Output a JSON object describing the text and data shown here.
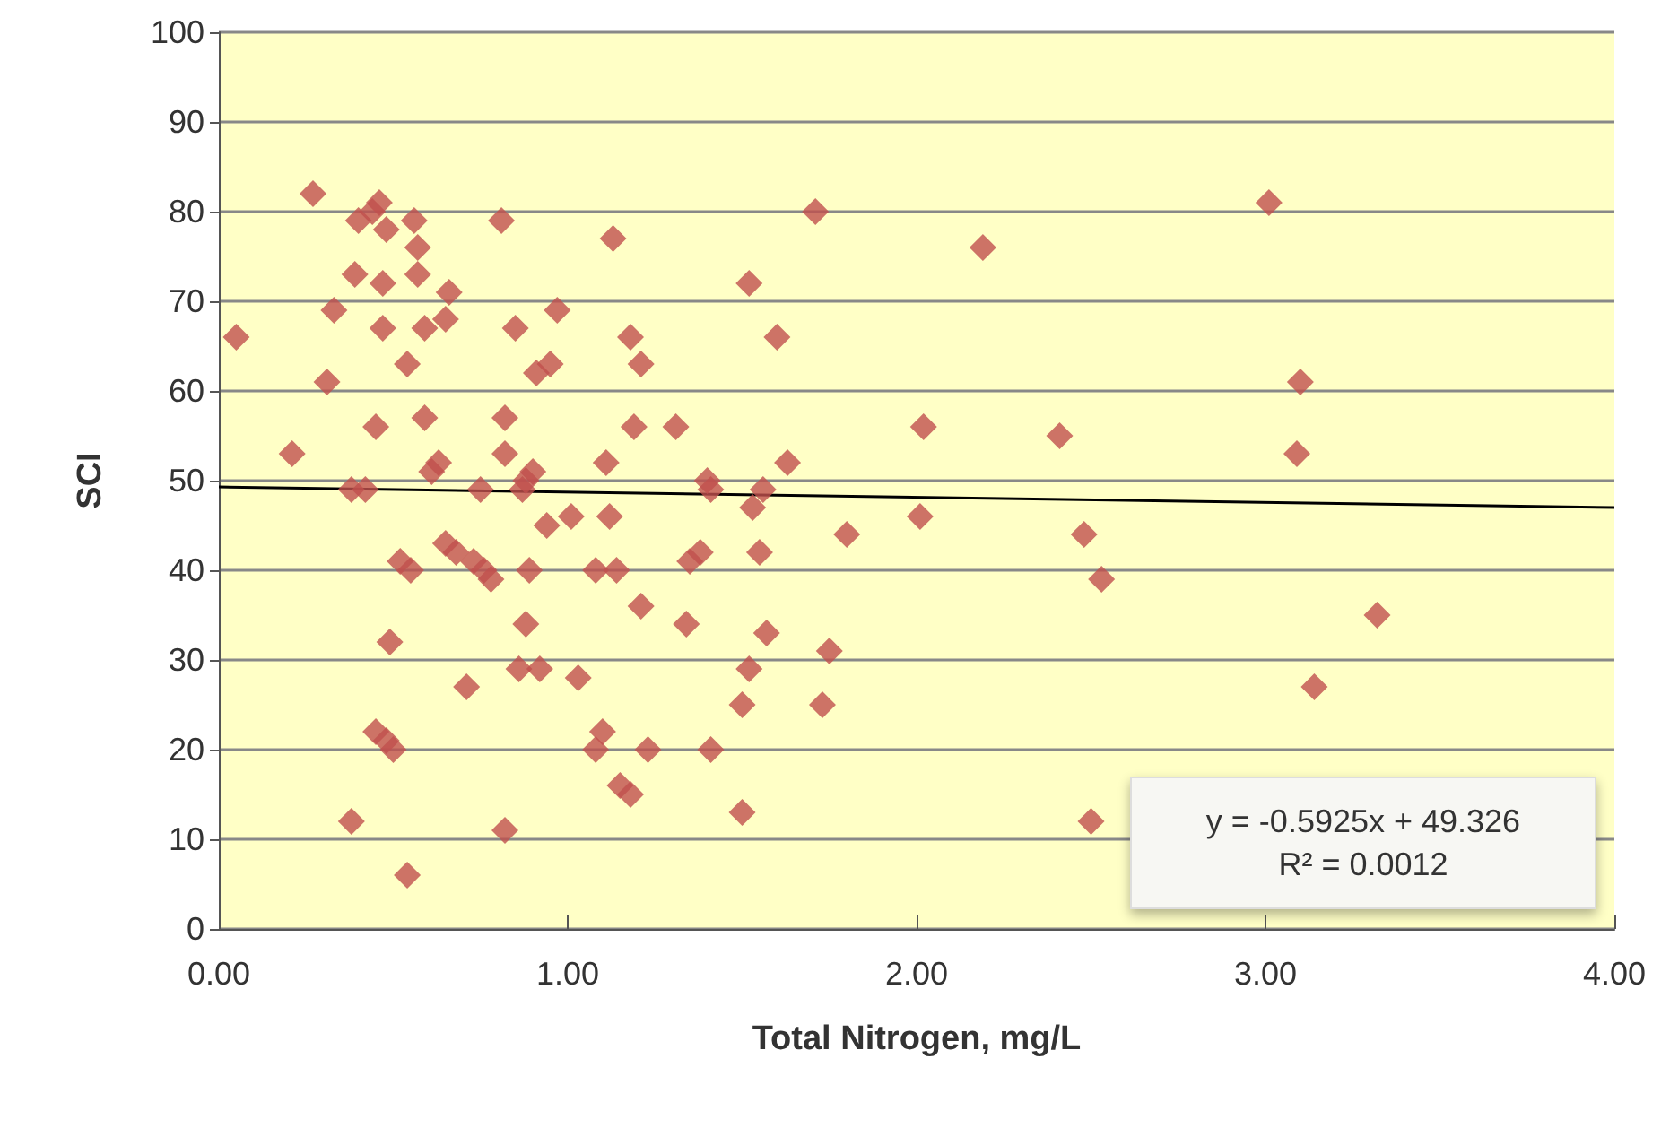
{
  "chart_data": {
    "type": "scatter",
    "xlabel": "Total Nitrogen, mg/L",
    "ylabel": "SCI",
    "xlim": [
      0,
      4
    ],
    "xticks": [
      {
        "value": 0,
        "label": "0.00"
      },
      {
        "value": 1,
        "label": "1.00"
      },
      {
        "value": 2,
        "label": "2.00"
      },
      {
        "value": 3,
        "label": "3.00"
      },
      {
        "value": 4,
        "label": "4.00"
      }
    ],
    "ylim": [
      0,
      100
    ],
    "yticks": [
      0,
      10,
      20,
      30,
      40,
      50,
      60,
      70,
      80,
      90,
      100
    ],
    "grid": "y",
    "annotations": [
      "y = -0.5925x + 49.326",
      "R² = 0.0012"
    ],
    "series": [
      {
        "marker": "diamond",
        "color": "#c0504d",
        "x": [
          0.05,
          0.21,
          0.27,
          0.31,
          0.33,
          0.38,
          0.38,
          0.39,
          0.4,
          0.42,
          0.44,
          0.45,
          0.45,
          0.46,
          0.47,
          0.47,
          0.48,
          0.48,
          0.49,
          0.5,
          0.52,
          0.54,
          0.54,
          0.55,
          0.56,
          0.57,
          0.57,
          0.59,
          0.59,
          0.61,
          0.63,
          0.65,
          0.65,
          0.66,
          0.68,
          0.71,
          0.73,
          0.75,
          0.76,
          0.78,
          0.81,
          0.82,
          0.82,
          0.82,
          0.85,
          0.86,
          0.87,
          0.88,
          0.88,
          0.89,
          0.9,
          0.91,
          0.92,
          0.94,
          0.95,
          0.97,
          1.01,
          1.03,
          1.08,
          1.08,
          1.1,
          1.11,
          1.12,
          1.13,
          1.14,
          1.15,
          1.18,
          1.18,
          1.19,
          1.21,
          1.21,
          1.23,
          1.31,
          1.34,
          1.35,
          1.38,
          1.4,
          1.41,
          1.41,
          1.5,
          1.5,
          1.52,
          1.52,
          1.53,
          1.55,
          1.56,
          1.57,
          1.6,
          1.63,
          1.71,
          1.73,
          1.75,
          1.8,
          2.01,
          2.02,
          2.19,
          2.41,
          2.48,
          2.5,
          2.53,
          3.01,
          3.09,
          3.1,
          3.14,
          3.32
        ],
        "values": [
          66,
          53,
          82,
          61,
          69,
          49,
          12,
          73,
          79,
          49,
          80,
          56,
          22,
          81,
          72,
          67,
          21,
          78,
          32,
          20,
          41,
          63,
          6,
          40,
          79,
          76,
          73,
          57,
          67,
          51,
          52,
          68,
          43,
          71,
          42,
          27,
          41,
          49,
          40,
          39,
          79,
          57,
          53,
          11,
          67,
          29,
          49,
          50,
          34,
          40,
          51,
          62,
          29,
          45,
          63,
          69,
          46,
          28,
          40,
          20,
          22,
          52,
          46,
          77,
          40,
          16,
          15,
          66,
          56,
          63,
          36,
          20,
          56,
          34,
          41,
          42,
          50,
          49,
          20,
          13,
          25,
          72,
          29,
          47,
          42,
          49,
          33,
          66,
          52,
          80,
          25,
          31,
          44,
          46,
          56,
          76,
          55,
          44,
          12,
          39,
          81,
          53,
          61,
          27,
          35
        ]
      },
      {
        "type": "line",
        "marker": "none",
        "color": "#000000",
        "x": [
          0,
          4
        ],
        "values": [
          49.3,
          47.0
        ]
      }
    ]
  }
}
